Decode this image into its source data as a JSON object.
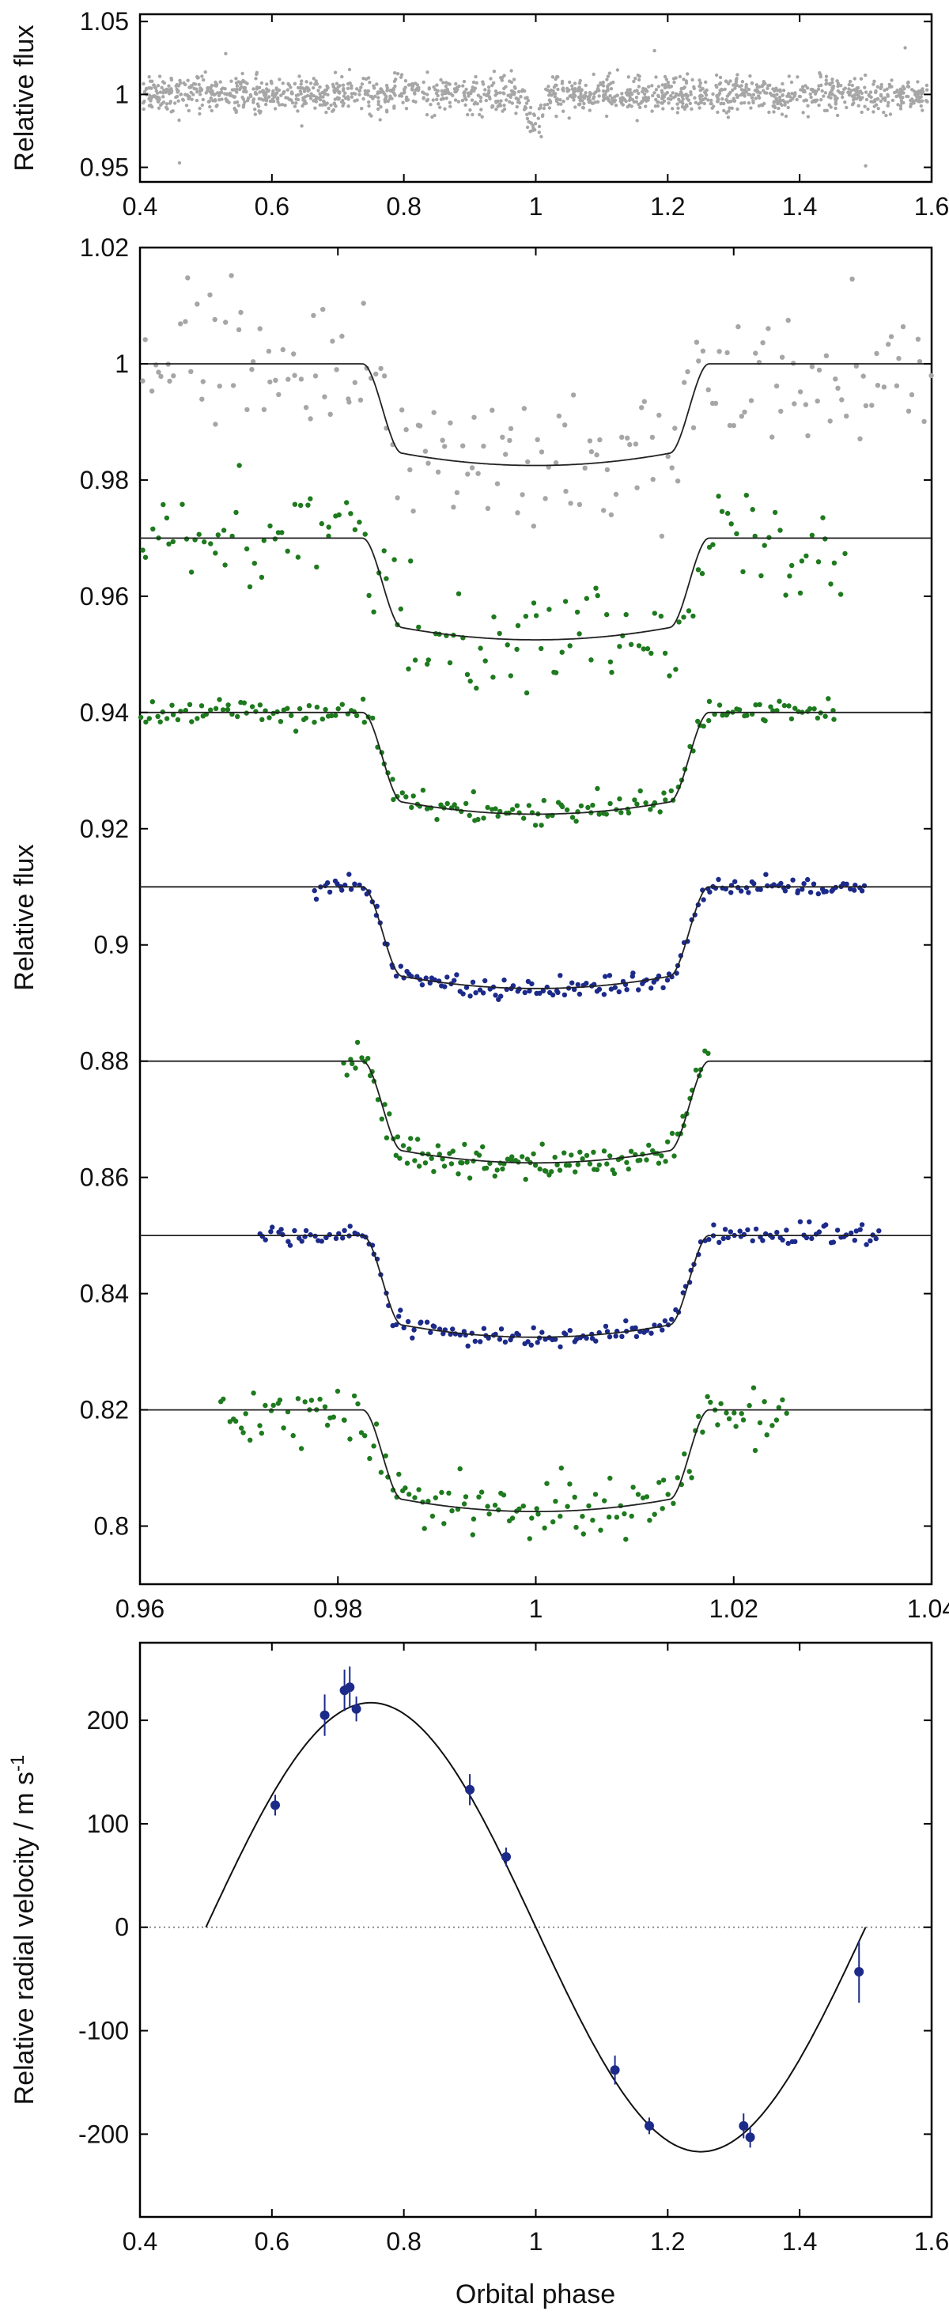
{
  "chart_data": [
    {
      "type": "scatter",
      "title": "",
      "xlabel": "",
      "ylabel": "Relative flux",
      "xlim": [
        0.4,
        1.6
      ],
      "ylim": [
        0.94,
        1.055
      ],
      "xticks": [
        "0.4",
        "0.6",
        "0.8",
        "1",
        "1.2",
        "1.4",
        "1.6"
      ],
      "yticks": [
        "0.95",
        "1",
        "1.05"
      ],
      "grid": false,
      "point_color": "#a6a6a6",
      "series": [
        {
          "description": "phase-folded survey photometry",
          "baseline_flux": 1.0,
          "scatter": 0.011,
          "transit_center": 1.0,
          "transit_depth": 0.018,
          "transit_half_width": 0.017,
          "notable_points": [
            {
              "x": 0.46,
              "y": 0.953
            },
            {
              "x": 1.18,
              "y": 1.03
            },
            {
              "x": 1.5,
              "y": 0.951
            },
            {
              "x": 0.53,
              "y": 1.028
            },
            {
              "x": 1.56,
              "y": 1.032
            }
          ]
        }
      ]
    },
    {
      "type": "scatter",
      "title": "",
      "xlabel": "",
      "ylabel": "Relative flux",
      "xlim": [
        0.96,
        1.04
      ],
      "ylim": [
        0.79,
        1.02
      ],
      "xticks": [
        "0.96",
        "0.98",
        "1",
        "1.02",
        "1.04"
      ],
      "yticks": [
        "0.8",
        "0.82",
        "0.84",
        "0.86",
        "0.88",
        "0.9",
        "0.92",
        "0.94",
        "0.96",
        "0.98",
        "1",
        "1.02"
      ],
      "grid": false,
      "model": {
        "transit_center": 1.0,
        "ingress_start": 0.9825,
        "ingress_end": 0.9865,
        "egress_start": 1.0135,
        "egress_end": 1.0175,
        "depth": 0.0175,
        "line_color": "#222222"
      },
      "series": [
        {
          "baseline": 1.0,
          "color": "#a6a6a6",
          "xrange": [
            0.96,
            1.04
          ],
          "scatter": 0.0058,
          "n": 190
        },
        {
          "baseline": 0.97,
          "color": "#1e7a1e",
          "xrange": [
            0.96,
            1.0315
          ],
          "scatter": 0.0045,
          "n": 150
        },
        {
          "baseline": 0.94,
          "color": "#1e7a1e",
          "xrange": [
            0.96,
            1.0305
          ],
          "scatter": 0.0012,
          "n": 190
        },
        {
          "baseline": 0.91,
          "color": "#1c2a8a",
          "xrange": [
            0.9775,
            1.0335
          ],
          "scatter": 0.0009,
          "n": 175
        },
        {
          "baseline": 0.88,
          "color": "#1e7a1e",
          "xrange": [
            0.9805,
            1.0175
          ],
          "scatter": 0.0014,
          "n": 130
        },
        {
          "baseline": 0.85,
          "color": "#1c2a8a",
          "xrange": [
            0.972,
            1.035
          ],
          "scatter": 0.0009,
          "n": 185
        },
        {
          "baseline": 0.82,
          "color": "#1e7a1e",
          "xrange": [
            0.968,
            1.0255
          ],
          "scatter": 0.0025,
          "n": 150
        }
      ]
    },
    {
      "type": "scatter",
      "title": "",
      "xlabel": "Orbital phase",
      "ylabel": "Relative radial velocity / m s-1",
      "xlim": [
        0.4,
        1.6
      ],
      "ylim": [
        -280,
        275
      ],
      "xticks": [
        "0.4",
        "0.6",
        "0.8",
        "1",
        "1.2",
        "1.4",
        "1.6"
      ],
      "yticks": [
        "-200",
        "-100",
        "0",
        "100",
        "200"
      ],
      "grid": false,
      "zero_line": true,
      "model": {
        "type": "sinusoid",
        "semi_amplitude": 217,
        "phase_start": 0.5,
        "phase_end": 1.5,
        "line_color": "#111111"
      },
      "series": [
        {
          "color": "#1c2a8a",
          "points": [
            {
              "x": 0.605,
              "y": 118,
              "err": 10
            },
            {
              "x": 0.68,
              "y": 205,
              "err": 20
            },
            {
              "x": 0.71,
              "y": 229,
              "err": 20
            },
            {
              "x": 0.718,
              "y": 232,
              "err": 20
            },
            {
              "x": 0.728,
              "y": 211,
              "err": 12
            },
            {
              "x": 0.9,
              "y": 133,
              "err": 15
            },
            {
              "x": 0.955,
              "y": 68,
              "err": 9
            },
            {
              "x": 1.12,
              "y": -138,
              "err": 14
            },
            {
              "x": 1.172,
              "y": -192,
              "err": 8
            },
            {
              "x": 1.315,
              "y": -192,
              "err": 12
            },
            {
              "x": 1.325,
              "y": -203,
              "err": 10
            },
            {
              "x": 1.49,
              "y": -43,
              "err": 30
            }
          ]
        }
      ]
    }
  ]
}
